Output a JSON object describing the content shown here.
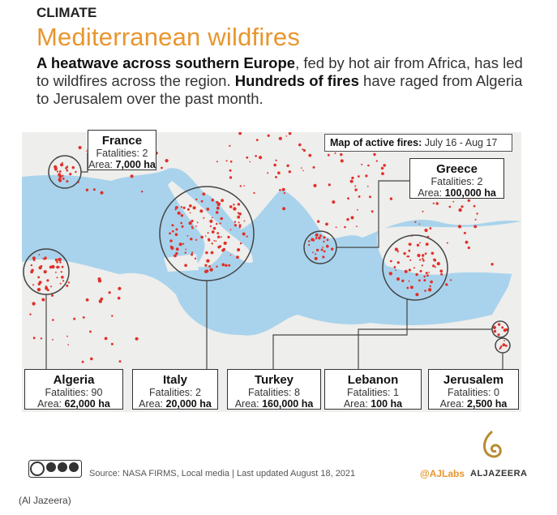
{
  "header": {
    "kicker": "CLIMATE",
    "title": "Mediterranean wildfires",
    "intro": [
      {
        "text": "A heatwave across southern Europe",
        "bold": true
      },
      {
        "text": ", fed by hot air from Africa, has led to wildfires across the region. ",
        "bold": false
      },
      {
        "text": "Hundreds of fires",
        "bold": true
      },
      {
        "text": " have raged from Algeria to Jerusalem over the past month.",
        "bold": false
      }
    ]
  },
  "map": {
    "label": "Map of active fires:",
    "date_range": "July 16 - Aug 17",
    "callouts": [
      {
        "name": "France",
        "fatalities_label": "Fatalities:",
        "fatalities": "2",
        "area_label": "Area:",
        "area": "7,000 ha"
      },
      {
        "name": "Greece",
        "fatalities_label": "Fatalities:",
        "fatalities": "2",
        "area_label": "Area:",
        "area": "100,000 ha"
      },
      {
        "name": "Algeria",
        "fatalities_label": "Fatalities:",
        "fatalities": "90",
        "area_label": "Area:",
        "area": "62,000 ha"
      },
      {
        "name": "Italy",
        "fatalities_label": "Fatalities:",
        "fatalities": "2",
        "area_label": "Area:",
        "area": "20,000 ha"
      },
      {
        "name": "Turkey",
        "fatalities_label": "Fatalities:",
        "fatalities": "8",
        "area_label": "Area:",
        "area": "160,000 ha"
      },
      {
        "name": "Lebanon",
        "fatalities_label": "Fatalities:",
        "fatalities": "1",
        "area_label": "Area:",
        "area": "100 ha"
      },
      {
        "name": "Jerusalem",
        "fatalities_label": "Fatalities:",
        "fatalities": "0",
        "area_label": "Area:",
        "area": "2,500 ha"
      }
    ]
  },
  "footer": {
    "source": "Source: NASA FIRMS, Local media  | Last updated August 18, 2021",
    "handle": "@AJLabs",
    "brand": "ALJAZEERA"
  },
  "caption": "(Al Jazeera)"
}
